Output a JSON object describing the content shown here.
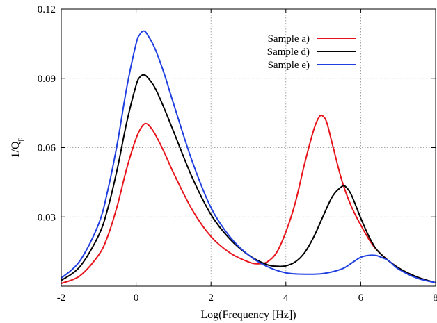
{
  "chart_data": {
    "type": "line",
    "title": "",
    "xlabel": "Log(Frequency [Hz])",
    "ylabel": "1/Q",
    "ylabel_subscript": "p",
    "xlim": [
      -2,
      8
    ],
    "ylim": [
      0.0,
      0.12
    ],
    "x_ticks": [
      -2,
      0,
      2,
      4,
      6,
      8
    ],
    "x_tick_labels": [
      "-2",
      "0",
      "2",
      "4",
      "6",
      "8"
    ],
    "y_ticks": [
      0.03,
      0.06,
      0.09,
      0.12
    ],
    "y_tick_labels": [
      "0.03",
      "0.06",
      "0.09",
      "0.12"
    ],
    "grid": true,
    "legend_position": "top-right",
    "series": [
      {
        "name": "Sample a)",
        "color": "#e8141b",
        "x": [
          -2.0,
          -1.5,
          -1.0,
          -0.75,
          -0.5,
          -0.25,
          0.0,
          0.15,
          0.25,
          0.35,
          0.5,
          0.75,
          1.0,
          1.5,
          2.0,
          2.5,
          3.0,
          3.25,
          3.5,
          3.75,
          4.0,
          4.25,
          4.5,
          4.75,
          4.9,
          5.0,
          5.1,
          5.25,
          5.5,
          5.75,
          6.0,
          6.25,
          6.5,
          7.0,
          7.5,
          8.0
        ],
        "y": [
          0.0012,
          0.0045,
          0.0135,
          0.022,
          0.035,
          0.051,
          0.064,
          0.069,
          0.0704,
          0.0695,
          0.066,
          0.058,
          0.049,
          0.033,
          0.0215,
          0.0145,
          0.0105,
          0.0097,
          0.0105,
          0.0145,
          0.0235,
          0.036,
          0.053,
          0.068,
          0.0735,
          0.0735,
          0.0705,
          0.061,
          0.0455,
          0.0345,
          0.0265,
          0.0195,
          0.0145,
          0.008,
          0.004,
          0.0015
        ]
      },
      {
        "name": "Sample d)",
        "color": "#000000",
        "x": [
          -2.0,
          -1.5,
          -1.0,
          -0.75,
          -0.5,
          -0.25,
          0.0,
          0.1,
          0.2,
          0.3,
          0.5,
          0.75,
          1.0,
          1.5,
          2.0,
          2.5,
          3.0,
          3.5,
          3.8,
          4.0,
          4.25,
          4.5,
          4.75,
          5.0,
          5.25,
          5.5,
          5.6,
          5.75,
          6.0,
          6.25,
          6.5,
          7.0,
          7.5,
          8.0
        ],
        "y": [
          0.0025,
          0.0085,
          0.022,
          0.034,
          0.051,
          0.071,
          0.087,
          0.0905,
          0.0915,
          0.0905,
          0.086,
          0.077,
          0.067,
          0.047,
          0.031,
          0.0205,
          0.0135,
          0.0093,
          0.0086,
          0.0088,
          0.0105,
          0.0145,
          0.0215,
          0.0305,
          0.039,
          0.0432,
          0.043,
          0.0395,
          0.0295,
          0.0205,
          0.0145,
          0.008,
          0.004,
          0.0015
        ]
      },
      {
        "name": "Sample e)",
        "color": "#1f3fe0",
        "x": [
          -2.0,
          -1.5,
          -1.0,
          -0.75,
          -0.5,
          -0.25,
          0.0,
          0.1,
          0.2,
          0.3,
          0.5,
          0.75,
          1.0,
          1.5,
          2.0,
          2.5,
          3.0,
          3.5,
          4.0,
          4.5,
          5.0,
          5.5,
          5.8,
          6.0,
          6.2,
          6.4,
          6.55,
          6.75,
          7.0,
          7.5,
          8.0
        ],
        "y": [
          0.0035,
          0.011,
          0.027,
          0.042,
          0.062,
          0.086,
          0.105,
          0.109,
          0.1105,
          0.109,
          0.103,
          0.092,
          0.079,
          0.054,
          0.034,
          0.0215,
          0.0135,
          0.0085,
          0.0058,
          0.0052,
          0.0055,
          0.0075,
          0.0105,
          0.0125,
          0.0133,
          0.0133,
          0.0125,
          0.011,
          0.0075,
          0.0035,
          0.0015
        ]
      }
    ]
  }
}
